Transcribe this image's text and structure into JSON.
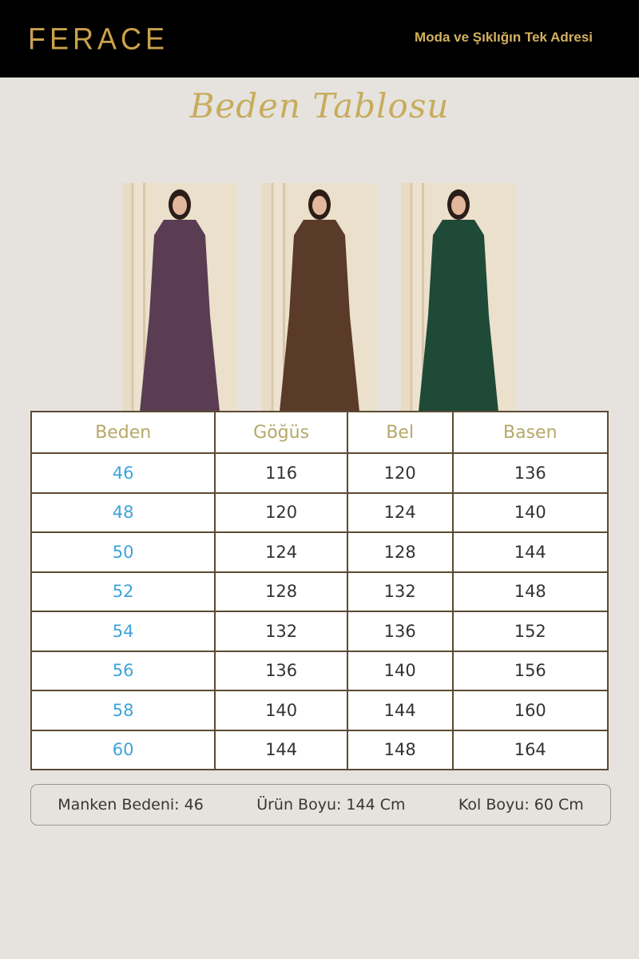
{
  "header": {
    "logo": "FERACE",
    "slogan": "Moda ve Şıklığın Tek Adresi"
  },
  "title": "Beden Tablosu",
  "photos": [
    {
      "dress_color": "#5a3d52"
    },
    {
      "dress_color": "#5a3a28"
    },
    {
      "dress_color": "#1f4a38"
    }
  ],
  "table": {
    "headers": [
      "Beden",
      "Göğüs",
      "Bel",
      "Basen"
    ],
    "rows": [
      [
        "46",
        "116",
        "120",
        "136"
      ],
      [
        "48",
        "120",
        "124",
        "140"
      ],
      [
        "50",
        "124",
        "128",
        "144"
      ],
      [
        "52",
        "128",
        "132",
        "148"
      ],
      [
        "54",
        "132",
        "136",
        "152"
      ],
      [
        "56",
        "136",
        "140",
        "156"
      ],
      [
        "58",
        "140",
        "144",
        "160"
      ],
      [
        "60",
        "144",
        "148",
        "164"
      ]
    ]
  },
  "footer": {
    "model_size": "Manken Bedeni: 46",
    "product_length": "Ürün Boyu: 144 Cm",
    "sleeve_length": "Kol Boyu: 60 Cm"
  }
}
